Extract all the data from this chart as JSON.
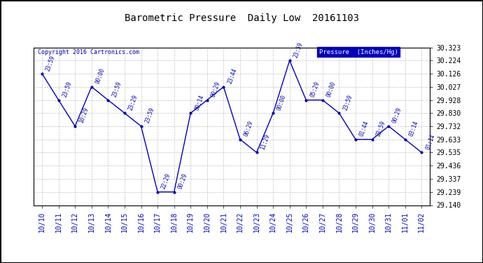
{
  "title": "Barometric Pressure  Daily Low  20161103",
  "copyright": "Copyright 2016 Cartronics.com",
  "legend_label": "Pressure  (Inches/Hg)",
  "dates": [
    "10/10",
    "10/11",
    "10/12",
    "10/13",
    "10/14",
    "10/15",
    "10/16",
    "10/17",
    "10/18",
    "10/19",
    "10/20",
    "10/21",
    "10/22",
    "10/23",
    "10/24",
    "10/25",
    "10/26",
    "10/27",
    "10/28",
    "10/29",
    "10/30",
    "10/31",
    "11/01",
    "11/02"
  ],
  "values": [
    30.126,
    29.928,
    29.732,
    30.027,
    29.928,
    29.83,
    29.732,
    29.239,
    29.239,
    29.83,
    29.928,
    30.027,
    29.633,
    29.535,
    29.83,
    30.224,
    29.928,
    29.928,
    29.83,
    29.633,
    29.633,
    29.732,
    29.633,
    29.535
  ],
  "time_labels": [
    "23:59",
    "23:59",
    "10:29",
    "00:00",
    "23:59",
    "23:29",
    "23:59",
    "22:29",
    "00:29",
    "00:14",
    "00:29",
    "23:44",
    "06:29",
    "11:29",
    "00:00",
    "23:59",
    "05:29",
    "00:00",
    "23:59",
    "01:44",
    "23:59",
    "00:29",
    "03:14",
    "01:14"
  ],
  "ylim_min": 29.14,
  "ylim_max": 30.323,
  "yticks": [
    29.14,
    29.239,
    29.337,
    29.436,
    29.535,
    29.633,
    29.732,
    29.83,
    29.928,
    30.027,
    30.126,
    30.224,
    30.323
  ],
  "line_color": "#0000bb",
  "marker_color": "#0000bb",
  "bg_color": "#ffffff",
  "grid_color": "#bbbbbb",
  "text_color": "#0000bb",
  "title_color": "#000000",
  "legend_bg": "#0000bb",
  "legend_fg": "#ffffff",
  "copyright_color": "#0000bb",
  "border_color": "#000000"
}
